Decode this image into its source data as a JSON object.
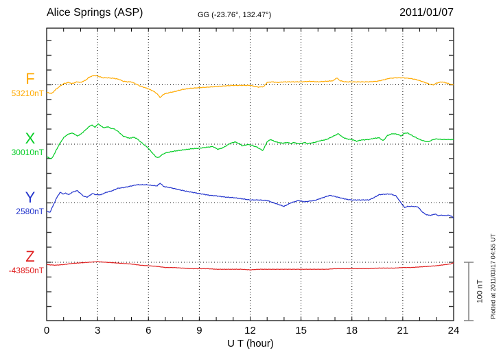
{
  "header": {
    "station": "Alice Springs (ASP)",
    "coordinates": "GG (-23.76°, 132.47°)",
    "date": "2011/01/07"
  },
  "axis": {
    "xlabel": "U T (hour)",
    "tick_labels": [
      "0",
      "3",
      "6",
      "9",
      "12",
      "15",
      "18",
      "21",
      "24"
    ],
    "minor_tick_every_hours": 1,
    "major_tick_every_hours": 3
  },
  "scale_bar": {
    "label": "100 nT",
    "nT": 100
  },
  "footer_note": "Plotted at 2011/03/17 04:55 UT",
  "chart_data": {
    "type": "line",
    "title": "Alice Springs (ASP) magnetogram 2011/01/07",
    "xlabel": "U T (hour)",
    "x_range": [
      0,
      24
    ],
    "x_ticks": [
      0,
      3,
      6,
      9,
      12,
      15,
      18,
      21,
      24
    ],
    "grid": "dotted vertical at 3h intervals, dotted horizontal at each component baseline",
    "scale_bar_nT": 100,
    "legend_position": "left margin, one colored label per trace",
    "series": [
      {
        "component": "F",
        "baseline_label": "53210nT",
        "baseline_nT": 53210,
        "color": "#FFAA00",
        "points_hour_offset_nT": [
          [
            0,
            -13
          ],
          [
            0.3,
            -15
          ],
          [
            0.5,
            -9
          ],
          [
            0.8,
            -2
          ],
          [
            1,
            2
          ],
          [
            1.3,
            4
          ],
          [
            1.5,
            2
          ],
          [
            1.8,
            5
          ],
          [
            2,
            4
          ],
          [
            2.3,
            8
          ],
          [
            2.5,
            13
          ],
          [
            2.8,
            16
          ],
          [
            3,
            15
          ],
          [
            3.3,
            12
          ],
          [
            3.6,
            12
          ],
          [
            4,
            11
          ],
          [
            4.3,
            9
          ],
          [
            4.5,
            6
          ],
          [
            4.8,
            5
          ],
          [
            5,
            5
          ],
          [
            5.3,
            1
          ],
          [
            5.5,
            -2
          ],
          [
            5.8,
            -5
          ],
          [
            6,
            -7
          ],
          [
            6.3,
            -11
          ],
          [
            6.5,
            -15
          ],
          [
            6.7,
            -22
          ],
          [
            6.9,
            -16
          ],
          [
            7.3,
            -13
          ],
          [
            7.5,
            -12
          ],
          [
            8,
            -8
          ],
          [
            8.5,
            -6
          ],
          [
            9,
            -5
          ],
          [
            9.5,
            -4
          ],
          [
            10,
            -3
          ],
          [
            10.5,
            -2
          ],
          [
            11,
            -1
          ],
          [
            11.5,
            -1
          ],
          [
            12,
            -1
          ],
          [
            12.5,
            -4
          ],
          [
            12.8,
            -3
          ],
          [
            13,
            4
          ],
          [
            13.3,
            5
          ],
          [
            13.6,
            4
          ],
          [
            14,
            5
          ],
          [
            14.5,
            5
          ],
          [
            15,
            5
          ],
          [
            15.5,
            6
          ],
          [
            16,
            5
          ],
          [
            16.5,
            6
          ],
          [
            16.9,
            7
          ],
          [
            17.1,
            12
          ],
          [
            17.3,
            7
          ],
          [
            17.6,
            5
          ],
          [
            18,
            5
          ],
          [
            18.5,
            5
          ],
          [
            19,
            5
          ],
          [
            19.5,
            6
          ],
          [
            19.8,
            8
          ],
          [
            20.2,
            11
          ],
          [
            20.6,
            12
          ],
          [
            21,
            12
          ],
          [
            21.4,
            11
          ],
          [
            21.8,
            9
          ],
          [
            22,
            7
          ],
          [
            22.3,
            4
          ],
          [
            22.6,
            1
          ],
          [
            22.8,
            0
          ],
          [
            23,
            3
          ],
          [
            23.3,
            5
          ],
          [
            23.6,
            3
          ],
          [
            23.8,
            1
          ],
          [
            24,
            0
          ]
        ]
      },
      {
        "component": "X",
        "baseline_label": "30010nT",
        "baseline_nT": 30010,
        "color": "#00CC22",
        "points_hour_offset_nT": [
          [
            0,
            -22
          ],
          [
            0.3,
            -25
          ],
          [
            0.5,
            -14
          ],
          [
            0.75,
            0
          ],
          [
            1,
            11
          ],
          [
            1.2,
            16
          ],
          [
            1.45,
            19
          ],
          [
            1.6,
            18
          ],
          [
            1.8,
            14
          ],
          [
            2,
            17
          ],
          [
            2.2,
            22
          ],
          [
            2.5,
            30
          ],
          [
            2.65,
            33
          ],
          [
            2.85,
            29
          ],
          [
            3.05,
            35
          ],
          [
            3.2,
            31
          ],
          [
            3.4,
            28
          ],
          [
            3.6,
            30
          ],
          [
            3.8,
            27
          ],
          [
            4,
            26
          ],
          [
            4.2,
            22
          ],
          [
            4.5,
            14
          ],
          [
            4.7,
            12
          ],
          [
            4.9,
            10
          ],
          [
            5.1,
            12
          ],
          [
            5.3,
            10
          ],
          [
            5.5,
            5
          ],
          [
            5.7,
            0
          ],
          [
            6,
            -7
          ],
          [
            6.2,
            -14
          ],
          [
            6.45,
            -22
          ],
          [
            6.6,
            -23
          ],
          [
            6.8,
            -18
          ],
          [
            7,
            -15
          ],
          [
            7.5,
            -12
          ],
          [
            8,
            -10
          ],
          [
            8.5,
            -8
          ],
          [
            9,
            -7
          ],
          [
            9.5,
            -5
          ],
          [
            9.8,
            -4
          ],
          [
            10.1,
            -9
          ],
          [
            10.4,
            -6
          ],
          [
            10.8,
            1
          ],
          [
            11.1,
            4
          ],
          [
            11.35,
            1
          ],
          [
            11.55,
            -3
          ],
          [
            11.8,
            -1
          ],
          [
            12,
            -1
          ],
          [
            12.4,
            -5
          ],
          [
            12.75,
            -11
          ],
          [
            13,
            4
          ],
          [
            13.2,
            8
          ],
          [
            13.5,
            4
          ],
          [
            13.8,
            2
          ],
          [
            14,
            2
          ],
          [
            14.2,
            3
          ],
          [
            14.4,
            1
          ],
          [
            14.6,
            3
          ],
          [
            14.8,
            1
          ],
          [
            15,
            1
          ],
          [
            15.2,
            3
          ],
          [
            15.4,
            1
          ],
          [
            15.6,
            2
          ],
          [
            15.8,
            3
          ],
          [
            16,
            5
          ],
          [
            16.5,
            8
          ],
          [
            17,
            15
          ],
          [
            17.2,
            18
          ],
          [
            17.45,
            12
          ],
          [
            17.7,
            9
          ],
          [
            18,
            8
          ],
          [
            18.3,
            5
          ],
          [
            18.5,
            7
          ],
          [
            19,
            8
          ],
          [
            19.3,
            10
          ],
          [
            19.6,
            11
          ],
          [
            19.85,
            6
          ],
          [
            20.1,
            15
          ],
          [
            20.4,
            18
          ],
          [
            20.7,
            17
          ],
          [
            20.9,
            14
          ],
          [
            21.1,
            19
          ],
          [
            21.3,
            19
          ],
          [
            21.6,
            14
          ],
          [
            22,
            8
          ],
          [
            22.3,
            5
          ],
          [
            22.5,
            4
          ],
          [
            22.8,
            8
          ],
          [
            23,
            9
          ],
          [
            23.3,
            8
          ],
          [
            23.6,
            8
          ],
          [
            24,
            8
          ]
        ]
      },
      {
        "component": "Y",
        "baseline_label": "2580nT",
        "baseline_nT": 2580,
        "color": "#2233CC",
        "points_hour_offset_nT": [
          [
            0,
            -15
          ],
          [
            0.2,
            -16
          ],
          [
            0.45,
            0
          ],
          [
            0.65,
            12
          ],
          [
            0.8,
            18
          ],
          [
            1,
            15
          ],
          [
            1.1,
            17
          ],
          [
            1.3,
            14
          ],
          [
            1.5,
            18
          ],
          [
            1.8,
            21
          ],
          [
            2,
            16
          ],
          [
            2.2,
            11
          ],
          [
            2.4,
            10
          ],
          [
            2.7,
            16
          ],
          [
            2.9,
            14
          ],
          [
            3.2,
            14
          ],
          [
            3.5,
            18
          ],
          [
            3.9,
            21
          ],
          [
            4.2,
            25
          ],
          [
            4.5,
            26
          ],
          [
            5,
            29
          ],
          [
            5.3,
            31
          ],
          [
            5.6,
            31
          ],
          [
            5.9,
            31
          ],
          [
            6.2,
            30
          ],
          [
            6.5,
            29
          ],
          [
            6.7,
            34
          ],
          [
            6.9,
            28
          ],
          [
            7.3,
            26
          ],
          [
            7.9,
            22
          ],
          [
            8.4,
            19
          ],
          [
            9,
            16
          ],
          [
            9.6,
            13
          ],
          [
            10,
            12
          ],
          [
            10.5,
            10
          ],
          [
            11,
            9
          ],
          [
            11.5,
            7
          ],
          [
            12,
            5
          ],
          [
            12.5,
            5
          ],
          [
            13,
            4
          ],
          [
            13.5,
            -1
          ],
          [
            14,
            -6
          ],
          [
            14.4,
            0
          ],
          [
            14.85,
            4
          ],
          [
            15.2,
            2
          ],
          [
            15.5,
            3
          ],
          [
            15.8,
            4
          ],
          [
            16.2,
            8
          ],
          [
            16.7,
            13
          ],
          [
            17,
            11
          ],
          [
            17.4,
            8
          ],
          [
            17.7,
            6
          ],
          [
            18,
            5
          ],
          [
            18.5,
            5
          ],
          [
            19,
            5
          ],
          [
            19.3,
            9
          ],
          [
            19.6,
            14
          ],
          [
            20,
            15
          ],
          [
            20.3,
            15
          ],
          [
            20.6,
            12
          ],
          [
            20.9,
            0
          ],
          [
            21.1,
            -8
          ],
          [
            21.3,
            -6
          ],
          [
            21.6,
            -6
          ],
          [
            21.9,
            -7
          ],
          [
            22.1,
            -14
          ],
          [
            22.3,
            -19
          ],
          [
            22.5,
            -21
          ],
          [
            22.7,
            -21
          ],
          [
            22.9,
            -19
          ],
          [
            23.1,
            -22
          ],
          [
            23.3,
            -21
          ],
          [
            23.5,
            -22
          ],
          [
            23.7,
            -21
          ],
          [
            23.9,
            -23
          ],
          [
            24,
            -27
          ]
        ]
      },
      {
        "component": "Z",
        "baseline_label": "-43850nT",
        "baseline_nT": -43850,
        "color": "#E02020",
        "points_hour_offset_nT": [
          [
            0,
            -4
          ],
          [
            0.5,
            -5
          ],
          [
            1,
            -4
          ],
          [
            1.5,
            -2
          ],
          [
            2,
            -1
          ],
          [
            2.5,
            0
          ],
          [
            3,
            1
          ],
          [
            3.5,
            0
          ],
          [
            4,
            -1
          ],
          [
            4.5,
            -2
          ],
          [
            5,
            -3
          ],
          [
            5.5,
            -5
          ],
          [
            6,
            -6
          ],
          [
            6.5,
            -7
          ],
          [
            7,
            -9
          ],
          [
            7.5,
            -9
          ],
          [
            8,
            -10
          ],
          [
            8.5,
            -11
          ],
          [
            9,
            -11
          ],
          [
            9.5,
            -11
          ],
          [
            10,
            -12
          ],
          [
            10.5,
            -12
          ],
          [
            11,
            -12
          ],
          [
            11.5,
            -12
          ],
          [
            12,
            -13
          ],
          [
            12.5,
            -12
          ],
          [
            13,
            -12
          ],
          [
            13.5,
            -12
          ],
          [
            14,
            -12
          ],
          [
            14.5,
            -12
          ],
          [
            15,
            -12
          ],
          [
            15.5,
            -12
          ],
          [
            16,
            -12
          ],
          [
            16.5,
            -12
          ],
          [
            17,
            -11
          ],
          [
            17.5,
            -11
          ],
          [
            18,
            -11
          ],
          [
            18.5,
            -11
          ],
          [
            19,
            -11
          ],
          [
            19.5,
            -10
          ],
          [
            20,
            -10
          ],
          [
            20.5,
            -10
          ],
          [
            21,
            -9
          ],
          [
            21.5,
            -9
          ],
          [
            22,
            -8
          ],
          [
            22.5,
            -7
          ],
          [
            23,
            -6
          ],
          [
            23.5,
            -4
          ],
          [
            23.8,
            -3
          ],
          [
            24,
            -1
          ]
        ]
      }
    ]
  }
}
